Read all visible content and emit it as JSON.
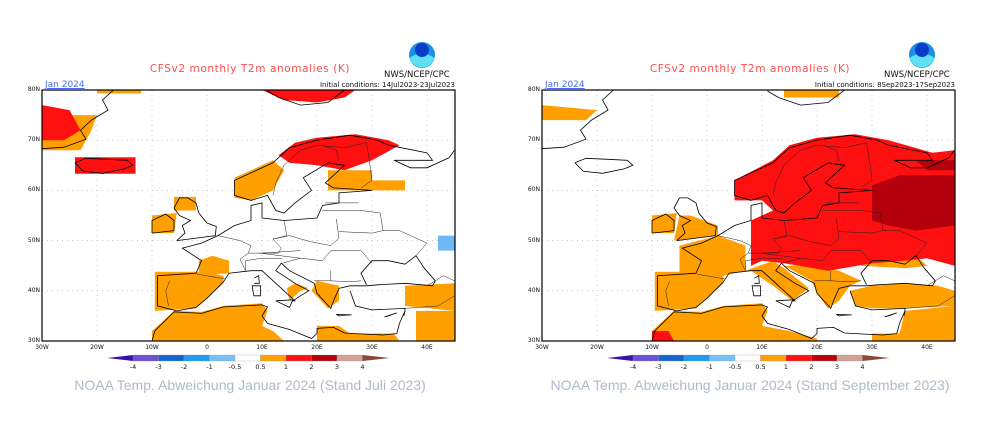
{
  "colors": {
    "title": "#ff4d4d",
    "month": "#4a6cf0",
    "caption": "#aebacb",
    "orange": "#ffa000",
    "red": "#ff1010",
    "dark_red": "#b4000c",
    "light_blue": "#6fb8f5"
  },
  "legend": {
    "ticks": [
      "-4",
      "-3",
      "-2",
      "-1",
      "-0.5",
      "0.5",
      "1",
      "2",
      "3",
      "4"
    ],
    "colors": [
      "#3a10a8",
      "#6a50d8",
      "#1464d2",
      "#1e9bf0",
      "#78c0f8",
      "#ffffff",
      "#ffa000",
      "#ff1010",
      "#b4000c",
      "#d4a098",
      "#8a4838"
    ]
  },
  "lat_labels": [
    "80N",
    "70N",
    "60N",
    "50N",
    "40N",
    "30N"
  ],
  "lon_labels": [
    "30W",
    "20W",
    "10W",
    "0",
    "10E",
    "20E",
    "30E",
    "40E"
  ],
  "panels": [
    {
      "title": "CFSv2 monthly T2m anomalies (K)",
      "logo": "NOAA",
      "org": "NWS/NCEP/CPC",
      "month": "Jan 2024",
      "initial_conditions": "Initial conditions: 14Jul2023-23Jul2023",
      "caption": "NOAA Temp. Abweichung Januar 2024 (Stand Juli 2023)"
    },
    {
      "title": "CFSv2 monthly T2m anomalies (K)",
      "logo": "NOAA",
      "org": "NWS/NCEP/CPC",
      "month": "Jan 2024",
      "initial_conditions": "Initial conditions: 8Sep2023-17Sep2023",
      "caption": "NOAA Temp. Abweichung Januar 2024 (Stand September 2023)"
    }
  ]
}
